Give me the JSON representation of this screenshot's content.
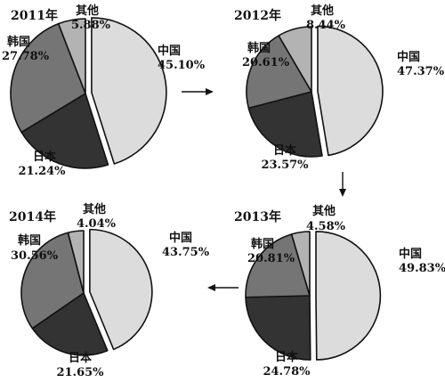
{
  "palette": {
    "中国": "#dcdcdc",
    "日本": "#333333",
    "韩国": "#757575",
    "其他": "#b3b3b3"
  },
  "chart_data": [
    {
      "type": "pie",
      "title": "2011年",
      "slices": [
        {
          "label": "中国",
          "value": 45.1,
          "display": "45.10%"
        },
        {
          "label": "日本",
          "value": 21.24,
          "display": "21.24%"
        },
        {
          "label": "韩国",
          "value": 27.78,
          "display": "27.78%"
        },
        {
          "label": "其他",
          "value": 5.88,
          "display": "5.88%"
        }
      ],
      "exploded": "中国"
    },
    {
      "type": "pie",
      "title": "2012年",
      "slices": [
        {
          "label": "中国",
          "value": 47.37,
          "display": "47.37%"
        },
        {
          "label": "日本",
          "value": 23.57,
          "display": "23.57%"
        },
        {
          "label": "韩国",
          "value": 20.61,
          "display": "20.61%"
        },
        {
          "label": "其他",
          "value": 8.44,
          "display": "8.44%"
        }
      ],
      "exploded": "中国"
    },
    {
      "type": "pie",
      "title": "2013年",
      "slices": [
        {
          "label": "中国",
          "value": 49.83,
          "display": "49.83%"
        },
        {
          "label": "日本",
          "value": 24.78,
          "display": "24.78%"
        },
        {
          "label": "韩国",
          "value": 20.81,
          "display": "20.81%"
        },
        {
          "label": "其他",
          "value": 4.58,
          "display": "4.58%"
        }
      ],
      "exploded": "中国"
    },
    {
      "type": "pie",
      "title": "2014年",
      "slices": [
        {
          "label": "中国",
          "value": 43.75,
          "display": "43.75%"
        },
        {
          "label": "日本",
          "value": 21.65,
          "display": "21.65%"
        },
        {
          "label": "韩国",
          "value": 30.56,
          "display": "30.56%"
        },
        {
          "label": "其他",
          "value": 4.04,
          "display": "4.04%"
        }
      ],
      "exploded": "中国"
    }
  ]
}
